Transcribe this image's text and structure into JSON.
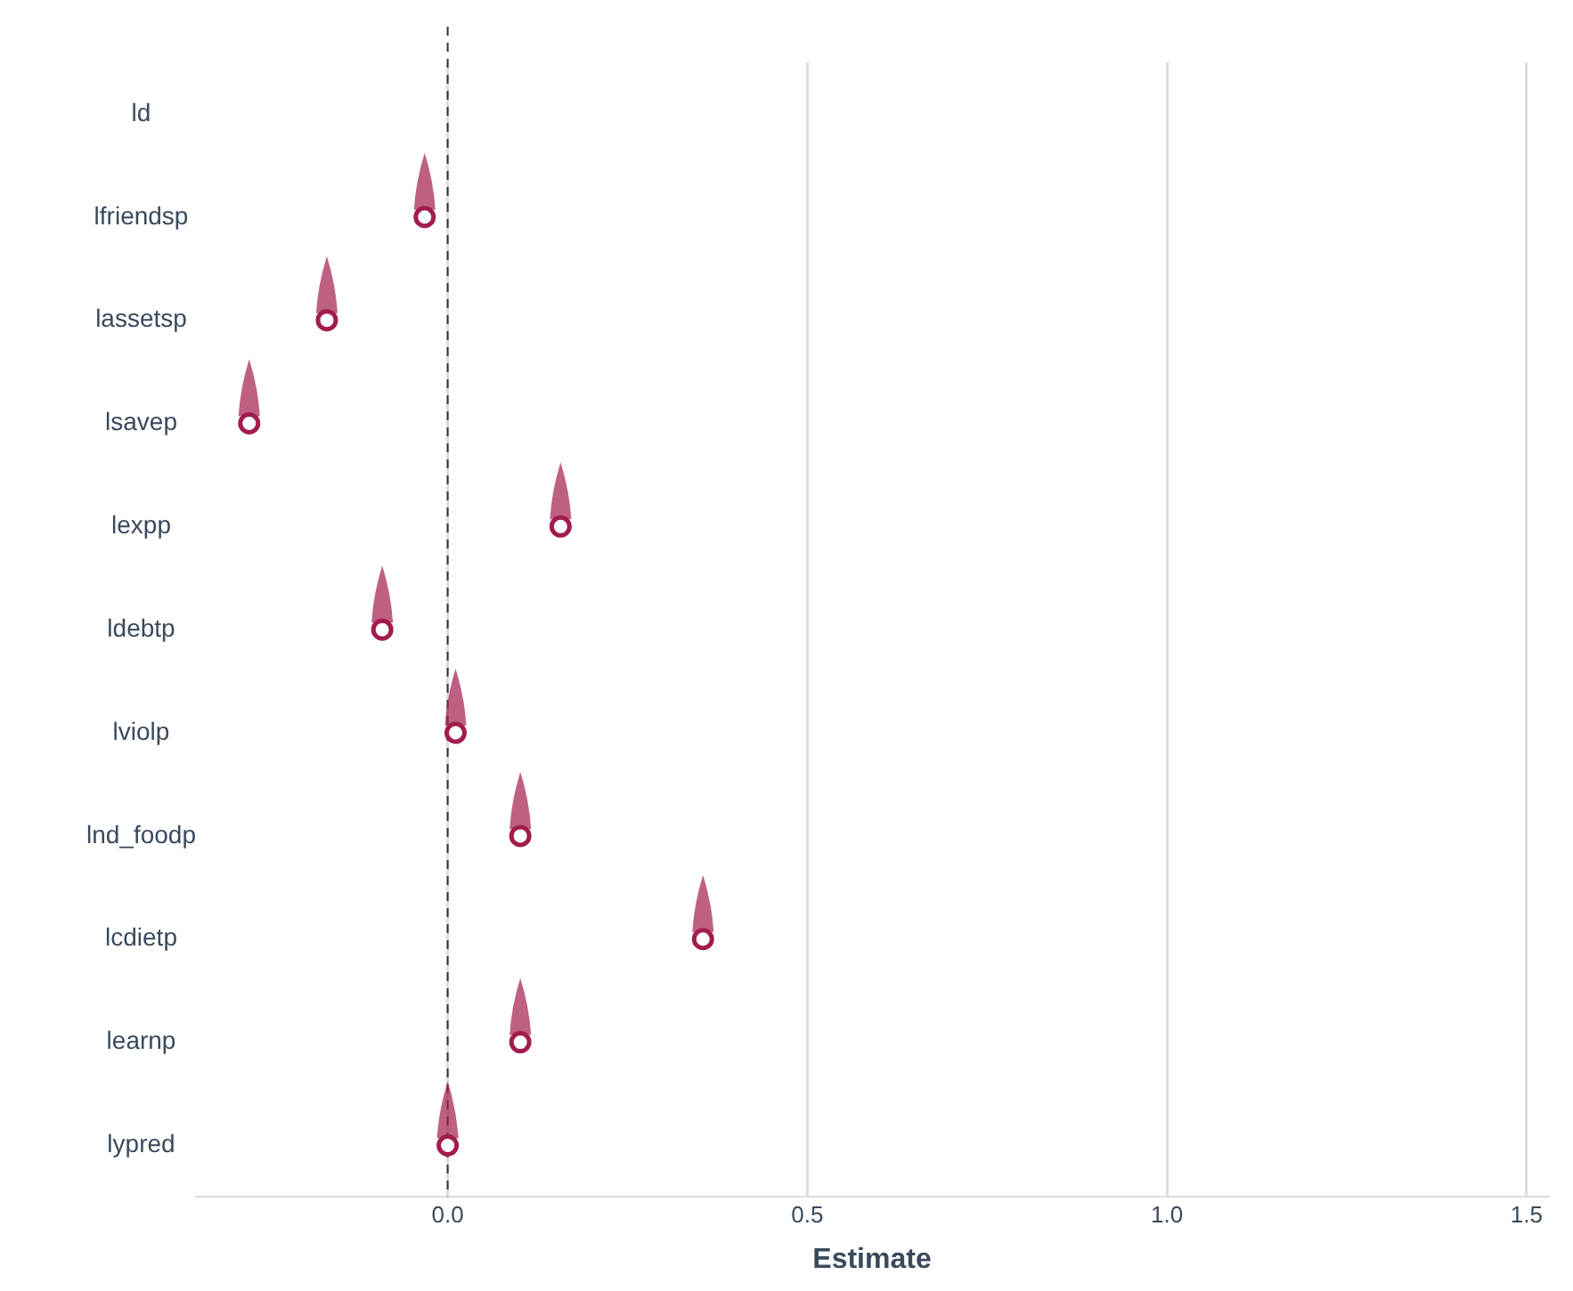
{
  "chart_data": {
    "type": "scatter",
    "orientation": "horizontal",
    "xlabel": "Estimate",
    "categories": [
      "ld",
      "lfriendsp",
      "lassetsp",
      "lsavep",
      "lexpp",
      "ldebtp",
      "lviolp",
      "lnd_foodp",
      "lcdietp",
      "learnp",
      "lypred"
    ],
    "series": [
      {
        "color": "#a21c4f",
        "values": [
          null,
          -0.032,
          -0.168,
          -0.276,
          0.157,
          -0.091,
          0.011,
          0.101,
          0.355,
          0.101,
          0
        ]
      }
    ],
    "marker": "circle",
    "xlim": [
      -0.35,
      1.53
    ],
    "xticks": [
      {
        "value": 0,
        "label": "0.0"
      },
      {
        "value": 0.5,
        "label": "0.5"
      },
      {
        "value": 1,
        "label": "1.0"
      },
      {
        "value": 1.5,
        "label": "1.5"
      }
    ],
    "grid": "x",
    "ref_lines": [
      {
        "axis": "x",
        "value": 0,
        "color": "#333333",
        "line_style": "dashed"
      }
    ]
  }
}
